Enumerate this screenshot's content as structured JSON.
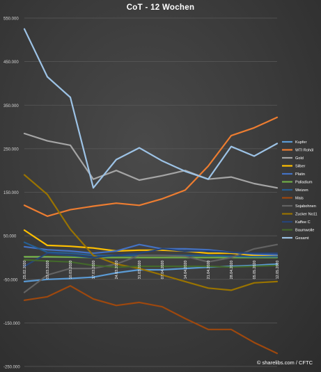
{
  "chart_data": {
    "type": "line",
    "title": "CoT - 12 Wochen",
    "credit": "© sharelibs.com / CFTC",
    "x": [
      "25.02.2020",
      "03.03.2020",
      "10.03.2020",
      "17.03.2020",
      "24.03.2020",
      "31.03.2020",
      "07.04.2020",
      "14.04.2020",
      "21.04.2020",
      "28.04.2020",
      "05.05.2020",
      "12.05.2020"
    ],
    "y_ticks": [
      550000,
      450000,
      350000,
      250000,
      150000,
      50000,
      -50000,
      -150000,
      -250000
    ],
    "y_tick_labels": [
      "550.000",
      "450.000",
      "350.000",
      "250.000",
      "150.000",
      "50.000",
      "-50.000",
      "-150.000",
      "-250.000"
    ],
    "ylim": [
      -250000,
      550000
    ],
    "grid": true,
    "legend": "right",
    "series": [
      {
        "name": "Kupfer",
        "color": "#5b9bd5",
        "values": [
          -55000,
          -50000,
          -48000,
          -45000,
          -35000,
          -28000,
          -28000,
          -25000,
          -22000,
          -20000,
          -18000,
          -15000
        ]
      },
      {
        "name": "WTI Rohöl",
        "color": "#ed7d31",
        "values": [
          120000,
          95000,
          110000,
          118000,
          125000,
          120000,
          135000,
          155000,
          210000,
          280000,
          298000,
          322000
        ]
      },
      {
        "name": "Gold",
        "color": "#a5a5a5",
        "values": [
          285000,
          268000,
          258000,
          180000,
          200000,
          178000,
          188000,
          200000,
          180000,
          185000,
          170000,
          160000
        ]
      },
      {
        "name": "Silber",
        "color": "#ffc000",
        "values": [
          63000,
          28000,
          26000,
          22000,
          15000,
          17000,
          17000,
          15000,
          10000,
          10000,
          5000,
          5000
        ]
      },
      {
        "name": "Platin",
        "color": "#4472c4",
        "values": [
          25000,
          18000,
          15000,
          10000,
          15000,
          30000,
          20000,
          20000,
          18000,
          12000,
          8000,
          6000
        ]
      },
      {
        "name": "Palladium",
        "color": "#70ad47",
        "values": [
          2000,
          2000,
          1000,
          0,
          0,
          0,
          0,
          0,
          0,
          0,
          0,
          0
        ]
      },
      {
        "name": "Weizen",
        "color": "#255e91",
        "values": [
          35000,
          12000,
          10000,
          5000,
          5000,
          5000,
          5000,
          5000,
          5000,
          3000,
          2000,
          2000
        ]
      },
      {
        "name": "Mais",
        "color": "#9e480e",
        "values": [
          -98000,
          -90000,
          -65000,
          -95000,
          -110000,
          -103000,
          -113000,
          -140000,
          -165000,
          -165000,
          -195000,
          -220000
        ]
      },
      {
        "name": "Sojabohnen",
        "color": "#636363",
        "values": [
          -80000,
          -40000,
          -25000,
          -25000,
          -15000,
          5000,
          5000,
          3000,
          -10000,
          0,
          20000,
          30000
        ]
      },
      {
        "name": "Zucker No11",
        "color": "#997300",
        "values": [
          190000,
          145000,
          65000,
          5000,
          -15000,
          -25000,
          -40000,
          -55000,
          -70000,
          -75000,
          -58000,
          -55000
        ]
      },
      {
        "name": "Kaffee C",
        "color": "#264478",
        "values": [
          -20000,
          10000,
          5000,
          0,
          5000,
          10000,
          20000,
          15000,
          15000,
          12000,
          10000,
          10000
        ]
      },
      {
        "name": "Baumwolle",
        "color": "#43682b",
        "values": [
          -5000,
          -8000,
          -10000,
          -18000,
          -22000,
          -20000,
          -20000,
          -20000,
          -20000,
          -22000,
          -20000,
          -18000
        ]
      },
      {
        "name": "Gesamt",
        "color": "#9dc3e6",
        "values": [
          525000,
          415000,
          368000,
          160000,
          225000,
          252000,
          222000,
          198000,
          180000,
          255000,
          233000,
          262000
        ]
      }
    ]
  }
}
